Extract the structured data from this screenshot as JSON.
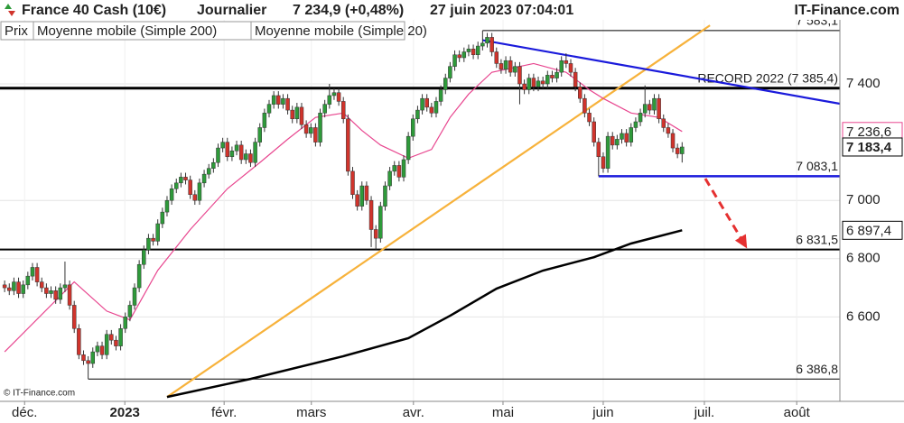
{
  "chart_data": {
    "type": "candlestick",
    "title": "France 40 Cash (10€)",
    "interval": "Journalier",
    "quote": "7 234,9 (+0,48%)",
    "datetime": "27 juin 2023 07:04:01",
    "source": "IT-Finance.com",
    "copyright": "© IT-Finance.com",
    "price_name": "Prix",
    "up_color": "#2e9a3a",
    "down_color": "#d0342c",
    "x": [
      0,
      1,
      2,
      3,
      4,
      5,
      6,
      7,
      8,
      9,
      10,
      11,
      12,
      13,
      14,
      15,
      16,
      17,
      18,
      19,
      20,
      21,
      22,
      23,
      24,
      25,
      26,
      27,
      28,
      29,
      30,
      31,
      32,
      33,
      34,
      35,
      36,
      37,
      38,
      39,
      40,
      41,
      42,
      43,
      44,
      45,
      46,
      47,
      48,
      49,
      50,
      51,
      52,
      53,
      54,
      55,
      56,
      57,
      58,
      59,
      60,
      61,
      62,
      63,
      64,
      65,
      66,
      67,
      68,
      69,
      70,
      71,
      72,
      73,
      74,
      75,
      76,
      77,
      78,
      79,
      80,
      81,
      82,
      83,
      84,
      85,
      86,
      87,
      88,
      89,
      90,
      91,
      92,
      93,
      94,
      95,
      96,
      97,
      98,
      99,
      100,
      101,
      102,
      103,
      104,
      105,
      106,
      107,
      108,
      109,
      110,
      111,
      112,
      113,
      114,
      115,
      116,
      117,
      118,
      119,
      120,
      121,
      122,
      123,
      124,
      125,
      126,
      127,
      128,
      129,
      130,
      131,
      132,
      133,
      134,
      135,
      136,
      137,
      138,
      139,
      140,
      141,
      142,
      143,
      144,
      145,
      146
    ],
    "candles": [
      [
        6710,
        6725,
        6685,
        6700
      ],
      [
        6700,
        6715,
        6675,
        6690
      ],
      [
        6690,
        6735,
        6675,
        6720
      ],
      [
        6720,
        6735,
        6665,
        6680
      ],
      [
        6680,
        6725,
        6665,
        6710
      ],
      [
        6710,
        6755,
        6695,
        6740
      ],
      [
        6740,
        6785,
        6725,
        6770
      ],
      [
        6770,
        6785,
        6705,
        6720
      ],
      [
        6720,
        6735,
        6685,
        6700
      ],
      [
        6700,
        6715,
        6665,
        6680
      ],
      [
        6680,
        6705,
        6665,
        6690
      ],
      [
        6690,
        6705,
        6645,
        6660
      ],
      [
        6660,
        6715,
        6645,
        6700
      ],
      [
        6700,
        6790,
        6685,
        6710
      ],
      [
        6710,
        6725,
        6625,
        6640
      ],
      [
        6640,
        6655,
        6545,
        6560
      ],
      [
        6560,
        6575,
        6455,
        6470
      ],
      [
        6470,
        6485,
        6435,
        6450
      ],
      [
        6450,
        6465,
        6386.8,
        6440
      ],
      [
        6440,
        6495,
        6425,
        6480
      ],
      [
        6480,
        6515,
        6465,
        6500
      ],
      [
        6500,
        6515,
        6455,
        6470
      ],
      [
        6470,
        6555,
        6455,
        6540
      ],
      [
        6540,
        6555,
        6505,
        6520
      ],
      [
        6520,
        6535,
        6485,
        6500
      ],
      [
        6500,
        6575,
        6485,
        6560
      ],
      [
        6560,
        6615,
        6545,
        6600
      ],
      [
        6600,
        6655,
        6585,
        6640
      ],
      [
        6640,
        6715,
        6625,
        6700
      ],
      [
        6700,
        6795,
        6685,
        6780
      ],
      [
        6780,
        6845,
        6765,
        6830
      ],
      [
        6830,
        6885,
        6815,
        6870
      ],
      [
        6870,
        6885,
        6845,
        6860
      ],
      [
        6860,
        6935,
        6845,
        6920
      ],
      [
        6920,
        6975,
        6905,
        6960
      ],
      [
        6960,
        7015,
        6945,
        7000
      ],
      [
        7000,
        7055,
        6985,
        7040
      ],
      [
        7040,
        7075,
        7025,
        7060
      ],
      [
        7060,
        7095,
        7045,
        7080
      ],
      [
        7080,
        7095,
        7055,
        7070
      ],
      [
        7070,
        7085,
        7005,
        7020
      ],
      [
        7020,
        7035,
        6985,
        7000
      ],
      [
        7000,
        7075,
        6985,
        7060
      ],
      [
        7060,
        7105,
        7045,
        7090
      ],
      [
        7090,
        7125,
        7075,
        7110
      ],
      [
        7110,
        7145,
        7095,
        7130
      ],
      [
        7130,
        7195,
        7115,
        7180
      ],
      [
        7180,
        7215,
        7165,
        7200
      ],
      [
        7200,
        7215,
        7135,
        7150
      ],
      [
        7150,
        7185,
        7135,
        7170
      ],
      [
        7170,
        7205,
        7155,
        7190
      ],
      [
        7190,
        7205,
        7125,
        7140
      ],
      [
        7140,
        7175,
        7125,
        7160
      ],
      [
        7160,
        7175,
        7115,
        7130
      ],
      [
        7130,
        7215,
        7115,
        7200
      ],
      [
        7200,
        7265,
        7185,
        7250
      ],
      [
        7250,
        7315,
        7235,
        7300
      ],
      [
        7300,
        7345,
        7285,
        7330
      ],
      [
        7330,
        7375,
        7315,
        7360
      ],
      [
        7360,
        7375,
        7315,
        7330
      ],
      [
        7330,
        7365,
        7315,
        7350
      ],
      [
        7350,
        7365,
        7295,
        7310
      ],
      [
        7310,
        7325,
        7265,
        7280
      ],
      [
        7280,
        7335,
        7265,
        7320
      ],
      [
        7320,
        7335,
        7245,
        7260
      ],
      [
        7260,
        7275,
        7215,
        7230
      ],
      [
        7230,
        7265,
        7215,
        7250
      ],
      [
        7250,
        7265,
        7185,
        7200
      ],
      [
        7200,
        7315,
        7185,
        7300
      ],
      [
        7300,
        7345,
        7285,
        7330
      ],
      [
        7330,
        7400,
        7315,
        7360
      ],
      [
        7360,
        7385,
        7345,
        7370
      ],
      [
        7370,
        7385,
        7325,
        7340
      ],
      [
        7340,
        7355,
        7265,
        7280
      ],
      [
        7280,
        7295,
        7085,
        7100
      ],
      [
        7100,
        7115,
        7005,
        7020
      ],
      [
        7020,
        7035,
        6965,
        6980
      ],
      [
        6980,
        7065,
        6965,
        7050
      ],
      [
        7050,
        7065,
        6985,
        7000
      ],
      [
        7000,
        7015,
        6840,
        6900
      ],
      [
        6900,
        6915,
        6831.5,
        6870
      ],
      [
        6870,
        6995,
        6855,
        6980
      ],
      [
        6980,
        7065,
        6965,
        7050
      ],
      [
        7050,
        7115,
        7035,
        7100
      ],
      [
        7100,
        7135,
        7085,
        7120
      ],
      [
        7120,
        7135,
        7065,
        7080
      ],
      [
        7080,
        7155,
        7065,
        7140
      ],
      [
        7140,
        7235,
        7125,
        7220
      ],
      [
        7220,
        7295,
        7205,
        7280
      ],
      [
        7280,
        7325,
        7265,
        7310
      ],
      [
        7310,
        7365,
        7295,
        7350
      ],
      [
        7350,
        7365,
        7305,
        7320
      ],
      [
        7320,
        7335,
        7285,
        7300
      ],
      [
        7300,
        7355,
        7285,
        7340
      ],
      [
        7340,
        7395,
        7325,
        7380
      ],
      [
        7380,
        7435,
        7365,
        7420
      ],
      [
        7420,
        7475,
        7405,
        7460
      ],
      [
        7460,
        7515,
        7445,
        7500
      ],
      [
        7500,
        7515,
        7475,
        7490
      ],
      [
        7490,
        7525,
        7475,
        7510
      ],
      [
        7510,
        7535,
        7495,
        7520
      ],
      [
        7520,
        7535,
        7485,
        7500
      ],
      [
        7500,
        7545,
        7485,
        7530
      ],
      [
        7530,
        7583.1,
        7515,
        7540
      ],
      [
        7540,
        7575,
        7525,
        7560
      ],
      [
        7560,
        7575,
        7495,
        7510
      ],
      [
        7510,
        7525,
        7455,
        7470
      ],
      [
        7470,
        7485,
        7435,
        7450
      ],
      [
        7450,
        7495,
        7435,
        7480
      ],
      [
        7480,
        7495,
        7425,
        7440
      ],
      [
        7440,
        7475,
        7425,
        7460
      ],
      [
        7460,
        7475,
        7330,
        7400
      ],
      [
        7400,
        7415,
        7365,
        7380
      ],
      [
        7380,
        7435,
        7365,
        7420
      ],
      [
        7420,
        7435,
        7375,
        7390
      ],
      [
        7390,
        7425,
        7375,
        7410
      ],
      [
        7410,
        7425,
        7385,
        7400
      ],
      [
        7400,
        7445,
        7385,
        7430
      ],
      [
        7430,
        7445,
        7405,
        7420
      ],
      [
        7420,
        7455,
        7405,
        7440
      ],
      [
        7440,
        7495,
        7425,
        7480
      ],
      [
        7480,
        7505,
        7455,
        7470
      ],
      [
        7470,
        7485,
        7425,
        7440
      ],
      [
        7440,
        7455,
        7375,
        7390
      ],
      [
        7390,
        7405,
        7335,
        7350
      ],
      [
        7350,
        7365,
        7285,
        7300
      ],
      [
        7300,
        7315,
        7255,
        7270
      ],
      [
        7270,
        7285,
        7185,
        7200
      ],
      [
        7200,
        7215,
        7083.1,
        7150
      ],
      [
        7150,
        7165,
        7095,
        7110
      ],
      [
        7110,
        7235,
        7095,
        7220
      ],
      [
        7220,
        7235,
        7175,
        7190
      ],
      [
        7190,
        7225,
        7175,
        7210
      ],
      [
        7210,
        7245,
        7195,
        7230
      ],
      [
        7230,
        7245,
        7185,
        7200
      ],
      [
        7200,
        7265,
        7185,
        7250
      ],
      [
        7250,
        7285,
        7235,
        7270
      ],
      [
        7270,
        7315,
        7255,
        7300
      ],
      [
        7300,
        7395,
        7285,
        7330
      ],
      [
        7330,
        7345,
        7295,
        7310
      ],
      [
        7310,
        7365,
        7295,
        7350
      ],
      [
        7350,
        7365,
        7265,
        7280
      ],
      [
        7280,
        7295,
        7235,
        7250
      ],
      [
        7250,
        7265,
        7215,
        7230
      ],
      [
        7230,
        7245,
        7165,
        7180
      ],
      [
        7180,
        7195,
        7145,
        7160
      ],
      [
        7160,
        7200,
        7130,
        7183.4
      ]
    ],
    "series": [
      {
        "name": "Moyenne mobile (Simple 200)",
        "color": "#000000",
        "x": [
          35,
          53,
          73,
          87,
          96,
          106,
          116,
          127,
          135,
          146
        ],
        "values": [
          6325,
          6387,
          6465,
          6527,
          6604,
          6697,
          6759,
          6805,
          6852,
          6897.4
        ]
      },
      {
        "name": "Moyenne mobile (Simple 20)",
        "color": "#e8468f",
        "x": [
          0,
          15,
          22,
          27,
          33,
          40,
          48,
          55,
          61,
          67,
          73,
          77,
          81,
          87,
          92,
          96,
          100,
          105,
          114,
          121,
          126,
          129,
          135,
          141,
          146
        ],
        "values": [
          6480,
          6720,
          6620,
          6590,
          6760,
          6900,
          7040,
          7130,
          7210,
          7285,
          7300,
          7240,
          7190,
          7145,
          7175,
          7285,
          7365,
          7440,
          7470,
          7440,
          7380,
          7350,
          7300,
          7285,
          7236.6
        ]
      }
    ],
    "lines": [
      {
        "color": "#f7b23b",
        "x": [
          35,
          152
        ],
        "values": [
          6325,
          7601
        ]
      },
      {
        "color": "#1a1adb",
        "x": [
          103,
          180
        ],
        "values": [
          7550,
          7332
        ]
      }
    ],
    "levels": [
      {
        "value": 7583.1,
        "label": "7 583,1",
        "color": "#000000",
        "from": 103,
        "width": 1
      },
      {
        "value": 7385.4,
        "label": "RECORD 2022 (7 385,4)",
        "color": "#000000",
        "from": -1,
        "width": 3
      },
      {
        "value": 7083.1,
        "label": "7 083,1",
        "color": "#1a1adb",
        "from": 128,
        "width": 2.5
      },
      {
        "value": 6831.5,
        "label": "6 831,5",
        "color": "#000000",
        "from": -1,
        "width": 2
      },
      {
        "value": 6386.8,
        "label": "6 386,8",
        "color": "#000000",
        "from": 18,
        "width": 1
      }
    ],
    "last_values": [
      {
        "value": 7236.6,
        "label": "7 236,6",
        "color": "#e8468f"
      },
      {
        "value": 7183.4,
        "label": "7 183,4",
        "color": "#000000"
      },
      {
        "value": 6897.4,
        "label": "6 897,4",
        "color": "#000000"
      }
    ],
    "arrow": {
      "color": "#e53030",
      "x": [
        151,
        160
      ],
      "values": [
        7075,
        6835
      ]
    },
    "xlim": [
      -1,
      180
    ],
    "ylim": [
      6310,
      7620
    ],
    "xticks": [
      {
        "value": 4.3,
        "label": "déc."
      },
      {
        "value": 25.9,
        "label": "2023",
        "bold": true
      },
      {
        "value": 47.3,
        "label": "févr."
      },
      {
        "value": 66.1,
        "label": "mars"
      },
      {
        "value": 88.1,
        "label": "avr."
      },
      {
        "value": 107.4,
        "label": "mai"
      },
      {
        "value": 129,
        "label": "juin"
      },
      {
        "value": 150.8,
        "label": "juil."
      },
      {
        "value": 170.7,
        "label": "août"
      }
    ],
    "yticks": [
      {
        "value": 6600,
        "label": "6 600"
      },
      {
        "value": 6800,
        "label": "6 800"
      },
      {
        "value": 7000,
        "label": "7 000"
      },
      {
        "value": 7400,
        "label": "7 400"
      }
    ],
    "grid": true
  }
}
